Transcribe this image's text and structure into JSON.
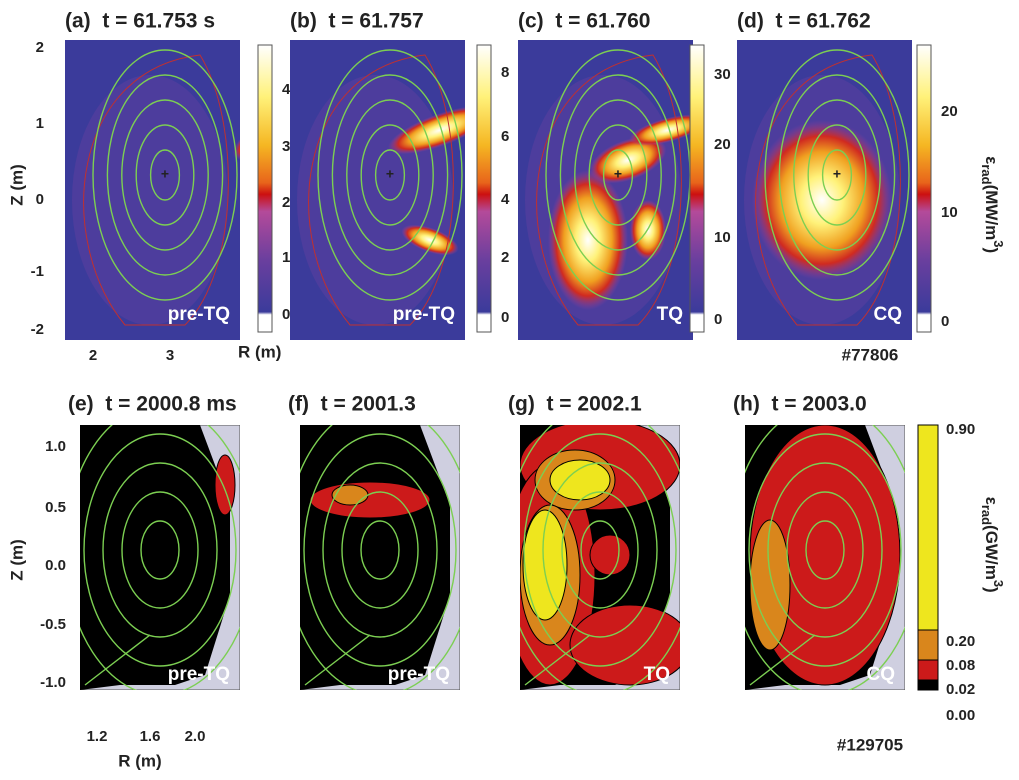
{
  "top": {
    "panels": [
      {
        "title": "(a)  t = 61.753 s",
        "phase": "pre-TQ",
        "colorbar_ticks": [
          "4",
          "3",
          "2",
          "1",
          "0"
        ]
      },
      {
        "title": "(b)  t = 61.757",
        "phase": "pre-TQ",
        "colorbar_ticks": [
          "8",
          "6",
          "4",
          "2",
          "0"
        ]
      },
      {
        "title": "(c)  t = 61.760",
        "phase": "TQ",
        "colorbar_ticks": [
          "30",
          "20",
          "10",
          "0"
        ]
      },
      {
        "title": "(d)  t = 61.762",
        "phase": "CQ",
        "colorbar_ticks": [
          "20",
          "10",
          "0"
        ]
      }
    ],
    "y_label": "Z (m)",
    "y_ticks": [
      "2",
      "1",
      "0",
      "-1",
      "-2"
    ],
    "x_label": "R (m)",
    "x_ticks": [
      "2",
      "3"
    ],
    "colorbar_label": {
      "symbol": "ε",
      "subscript": "rad",
      "unit": "(MW/m",
      "superscript": "3",
      "close": ")"
    },
    "shot": "#77806"
  },
  "bottom": {
    "panels": [
      {
        "title": "(e)  t = 2000.8 ms",
        "phase": "pre-TQ"
      },
      {
        "title": "(f)  t = 2001.3",
        "phase": "pre-TQ"
      },
      {
        "title": "(g)  t = 2002.1",
        "phase": "TQ"
      },
      {
        "title": "(h)  t = 2003.0",
        "phase": "CQ"
      }
    ],
    "y_label": "Z (m)",
    "y_ticks": [
      "1.0",
      "0.5",
      "0.0",
      "-0.5",
      "-1.0"
    ],
    "x_label": "R (m)",
    "x_ticks": [
      "1.2",
      "1.6",
      "2.0"
    ],
    "colorbar_ticks": [
      "0.90",
      "0.20",
      "0.08",
      "0.02",
      "0.00"
    ],
    "colorbar_label": {
      "symbol": "ε",
      "subscript": "rad",
      "unit": "(GW/m",
      "superscript": "3",
      "close": ")"
    },
    "shot": "#129705"
  }
}
